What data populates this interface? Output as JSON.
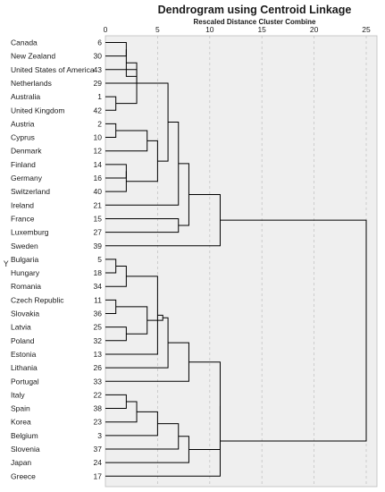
{
  "chart_data": {
    "type": "dendrogram",
    "title": "Dendrogram using Centroid Linkage",
    "subtitle": "Rescaled Distance Cluster Combine",
    "xlim": [
      0,
      25
    ],
    "x_ticks": [
      "0",
      "5",
      "10",
      "15",
      "20",
      "25"
    ],
    "grid": true,
    "marker_glyph": "Y",
    "leaves": [
      {
        "label": "Canada",
        "id": "6"
      },
      {
        "label": "New Zealand",
        "id": "30"
      },
      {
        "label": "United States of America",
        "id": "43"
      },
      {
        "label": "Netherlands",
        "id": "29"
      },
      {
        "label": "Australia",
        "id": "1"
      },
      {
        "label": "United Kingdom",
        "id": "42"
      },
      {
        "label": "Austria",
        "id": "2"
      },
      {
        "label": "Cyprus",
        "id": "10"
      },
      {
        "label": "Denmark",
        "id": "12"
      },
      {
        "label": "Finland",
        "id": "14"
      },
      {
        "label": "Germany",
        "id": "16"
      },
      {
        "label": "Switzerland",
        "id": "40"
      },
      {
        "label": "Ireland",
        "id": "21"
      },
      {
        "label": "France",
        "id": "15"
      },
      {
        "label": "Luxemburg",
        "id": "27"
      },
      {
        "label": "Sweden",
        "id": "39"
      },
      {
        "label": "Bulgaria",
        "id": "5"
      },
      {
        "label": "Hungary",
        "id": "18"
      },
      {
        "label": "Romania",
        "id": "34"
      },
      {
        "label": "Czech Republic",
        "id": "11"
      },
      {
        "label": "Slovakia",
        "id": "36"
      },
      {
        "label": "Latvia",
        "id": "25"
      },
      {
        "label": "Poland",
        "id": "32"
      },
      {
        "label": "Estonia",
        "id": "13"
      },
      {
        "label": "Lithania",
        "id": "26"
      },
      {
        "label": "Portugal",
        "id": "33"
      },
      {
        "label": "Italy",
        "id": "22"
      },
      {
        "label": "Spain",
        "id": "38"
      },
      {
        "label": "Korea",
        "id": "23"
      },
      {
        "label": "Belgium",
        "id": "3"
      },
      {
        "label": "Slovenia",
        "id": "37"
      },
      {
        "label": "Japan",
        "id": "24"
      },
      {
        "label": "Greece",
        "id": "17"
      }
    ],
    "merges": [
      {
        "a": "L0",
        "b": "L1",
        "height": 2.0
      },
      {
        "a": "L6",
        "b": "L7",
        "height": 1.0
      },
      {
        "a": "L9",
        "b": "L10",
        "height": 2.0
      },
      {
        "a": "L2",
        "b": "L3",
        "height": 3.0
      },
      {
        "a": "L4",
        "b": "L5",
        "height": 1.0
      },
      {
        "a": "L16",
        "b": "L17",
        "height": 1.0
      },
      {
        "a": "L19",
        "b": "L20",
        "height": 1.0
      },
      {
        "a": "L21",
        "b": "L22",
        "height": 2.0
      },
      {
        "a": "L26",
        "b": "L27",
        "height": 2.0
      },
      {
        "a": "N0",
        "b": "N3",
        "height": 2.0
      },
      {
        "a": "N2",
        "b": "L11",
        "height": 2.0
      },
      {
        "a": "N9",
        "b": "N4",
        "height": 3.0
      },
      {
        "a": "N1",
        "b": "L8",
        "height": 4.0
      },
      {
        "a": "N5",
        "b": "L18",
        "height": 2.0
      },
      {
        "a": "N6",
        "b": "N7",
        "height": 4.0
      },
      {
        "a": "N13",
        "b": "L23",
        "height": 5.0
      },
      {
        "a": "N12",
        "b": "N10",
        "height": 5.0
      },
      {
        "a": "N11",
        "b": "N16",
        "height": 6.0
      },
      {
        "a": "N8",
        "b": "L28",
        "height": 3.0
      },
      {
        "a": "N17",
        "b": "L12",
        "height": 7.0
      },
      {
        "a": "N15",
        "b": "N14",
        "height": 5.5
      },
      {
        "a": "N20",
        "b": "L24",
        "height": 6.0
      },
      {
        "a": "L13",
        "b": "L14",
        "height": 7.0
      },
      {
        "a": "N18",
        "b": "L29",
        "height": 5.0
      },
      {
        "a": "N19",
        "b": "N22",
        "height": 8.0
      },
      {
        "a": "N21",
        "b": "L25",
        "height": 8.0
      },
      {
        "a": "N23",
        "b": "L30",
        "height": 7.0
      },
      {
        "a": "N26",
        "b": "L31",
        "height": 8.0
      },
      {
        "a": "N25",
        "b": "N27",
        "height": 11.0
      },
      {
        "a": "N24",
        "b": "L15",
        "height": 11.0
      },
      {
        "a": "N28",
        "b": "L32",
        "height": 11.0
      },
      {
        "a": "N29",
        "b": "N30",
        "height": 25.0
      }
    ]
  }
}
